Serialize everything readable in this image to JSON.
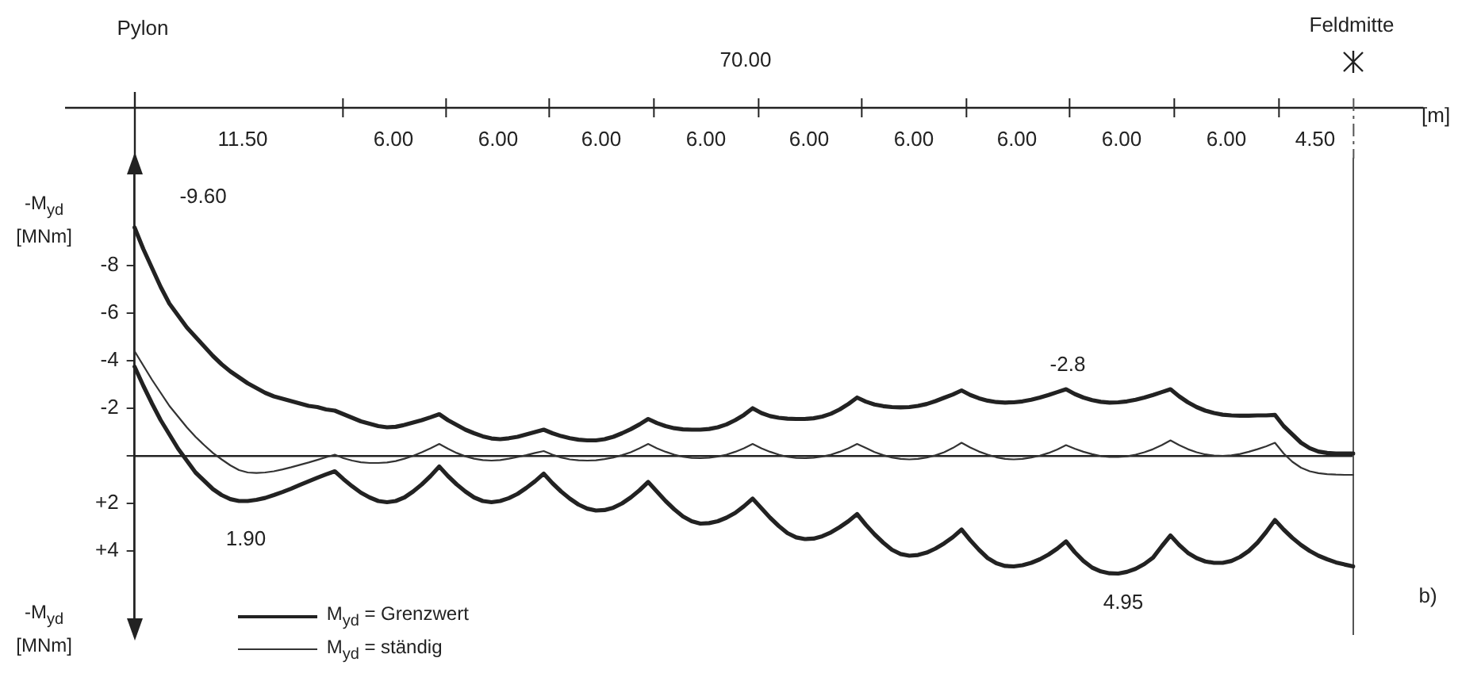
{
  "chart_data": {
    "type": "line",
    "ylabel": "-M$_{yd}$ [MNm]",
    "xlabel": "[m]",
    "tick_labels": "y",
    "ylim": [
      7.5,
      -12.5
    ],
    "yticks": [
      -8,
      -6,
      -4,
      -2,
      {
        "value": 0,
        "label": null
      },
      {
        "value": 2,
        "label": "+2"
      },
      {
        "value": 4,
        "label": "+4"
      }
    ],
    "legend": "bottom left",
    "marker": "none",
    "line_style": "solid",
    "categories": [
      null,
      null,
      null,
      null,
      null,
      null,
      null,
      null,
      null,
      null,
      null,
      null,
      null,
      null,
      null,
      null,
      null,
      null,
      null,
      null,
      null,
      null,
      null,
      null,
      null,
      null,
      null,
      null,
      null,
      null,
      null,
      null,
      null,
      null,
      null,
      null,
      null,
      null,
      null,
      null,
      null,
      null,
      null,
      null,
      null,
      null,
      null,
      null,
      null,
      null,
      null,
      null,
      null,
      null,
      null,
      null,
      null,
      null,
      null,
      null,
      null,
      null,
      null,
      null,
      null,
      null,
      null,
      null,
      null,
      null,
      null,
      null,
      null,
      null,
      null,
      null,
      null,
      null,
      null,
      null,
      null,
      null,
      null,
      null,
      null,
      null,
      null,
      null,
      null,
      null,
      null,
      null,
      null,
      null,
      null,
      null,
      null,
      null,
      null,
      null,
      null,
      null,
      null,
      null,
      null,
      null,
      null,
      null,
      null,
      null,
      null,
      null,
      null,
      null,
      null,
      null,
      null,
      null,
      null,
      null,
      null,
      null,
      null,
      null,
      null,
      null,
      null,
      null,
      null,
      null,
      null,
      null,
      null,
      null,
      null,
      null,
      null,
      null,
      null,
      null,
      null
    ],
    "series": [
      {
        "name": "M$_{yd}$ = Grenzwert",
        "color": "#222222",
        "values": [
          -9.6,
          -8.7,
          -7.9,
          -7.1,
          -6.4,
          -5.9,
          -5.4,
          -5.0,
          -4.6,
          -4.2,
          -3.85,
          -3.55,
          -3.3,
          -3.05,
          -2.85,
          -2.65,
          -2.5,
          -2.4,
          -2.3,
          -2.2,
          -2.1,
          -2.05,
          -1.95,
          -1.9,
          -1.75,
          -1.6,
          -1.45,
          -1.35,
          -1.25,
          -1.2,
          -1.22,
          -1.3,
          -1.4,
          -1.5,
          -1.62,
          -1.75,
          -1.5,
          -1.3,
          -1.1,
          -0.95,
          -0.82,
          -0.73,
          -0.7,
          -0.74,
          -0.8,
          -0.9,
          -1.0,
          -1.1,
          -0.95,
          -0.83,
          -0.74,
          -0.68,
          -0.65,
          -0.65,
          -0.7,
          -0.8,
          -0.95,
          -1.12,
          -1.32,
          -1.55,
          -1.38,
          -1.25,
          -1.16,
          -1.11,
          -1.1,
          -1.1,
          -1.13,
          -1.2,
          -1.32,
          -1.5,
          -1.72,
          -2.0,
          -1.8,
          -1.67,
          -1.6,
          -1.56,
          -1.55,
          -1.55,
          -1.58,
          -1.65,
          -1.77,
          -1.95,
          -2.18,
          -2.45,
          -2.28,
          -2.16,
          -2.09,
          -2.05,
          -2.04,
          -2.05,
          -2.1,
          -2.18,
          -2.3,
          -2.44,
          -2.58,
          -2.75,
          -2.56,
          -2.42,
          -2.32,
          -2.26,
          -2.24,
          -2.25,
          -2.29,
          -2.36,
          -2.45,
          -2.56,
          -2.68,
          -2.8,
          -2.6,
          -2.45,
          -2.34,
          -2.27,
          -2.24,
          -2.25,
          -2.29,
          -2.36,
          -2.45,
          -2.56,
          -2.68,
          -2.8,
          -2.5,
          -2.25,
          -2.05,
          -1.9,
          -1.8,
          -1.73,
          -1.7,
          -1.69,
          -1.69,
          -1.7,
          -1.7,
          -1.72,
          -1.25,
          -0.9,
          -0.55,
          -0.32,
          -0.18,
          -0.12,
          -0.1,
          -0.1,
          -0.1
        ]
      },
      {
        "color": "#222222",
        "values": [
          -3.75,
          -2.95,
          -2.2,
          -1.5,
          -0.9,
          -0.3,
          0.2,
          0.7,
          1.05,
          1.4,
          1.65,
          1.82,
          1.9,
          1.9,
          1.85,
          1.77,
          1.65,
          1.52,
          1.38,
          1.22,
          1.07,
          0.92,
          0.78,
          0.65,
          0.98,
          1.28,
          1.55,
          1.75,
          1.9,
          1.95,
          1.9,
          1.75,
          1.5,
          1.2,
          0.85,
          0.45,
          0.85,
          1.2,
          1.5,
          1.75,
          1.9,
          1.95,
          1.9,
          1.78,
          1.6,
          1.35,
          1.07,
          0.75,
          1.15,
          1.5,
          1.8,
          2.05,
          2.22,
          2.3,
          2.28,
          2.18,
          2.0,
          1.75,
          1.45,
          1.1,
          1.5,
          1.9,
          2.25,
          2.55,
          2.75,
          2.85,
          2.83,
          2.75,
          2.6,
          2.4,
          2.12,
          1.8,
          2.2,
          2.6,
          2.95,
          3.25,
          3.43,
          3.5,
          3.48,
          3.38,
          3.22,
          3.0,
          2.75,
          2.45,
          2.9,
          3.3,
          3.65,
          3.95,
          4.13,
          4.2,
          4.17,
          4.07,
          3.9,
          3.68,
          3.42,
          3.1,
          3.55,
          3.95,
          4.3,
          4.52,
          4.63,
          4.65,
          4.6,
          4.5,
          4.35,
          4.15,
          3.9,
          3.6,
          4.05,
          4.42,
          4.7,
          4.86,
          4.94,
          4.95,
          4.88,
          4.75,
          4.55,
          4.28,
          3.8,
          3.35,
          3.75,
          4.08,
          4.3,
          4.44,
          4.5,
          4.5,
          4.42,
          4.25,
          4.0,
          3.65,
          3.2,
          2.7,
          3.1,
          3.45,
          3.75,
          4.0,
          4.2,
          4.35,
          4.48,
          4.57,
          4.65
        ]
      },
      {
        "name": "M$_{yd}$ = ständig",
        "color": "#333333",
        "values": [
          -4.4,
          -3.8,
          -3.2,
          -2.65,
          -2.1,
          -1.65,
          -1.2,
          -0.8,
          -0.45,
          -0.12,
          0.15,
          0.4,
          0.6,
          0.7,
          0.72,
          0.7,
          0.65,
          0.57,
          0.48,
          0.38,
          0.28,
          0.17,
          0.06,
          -0.05,
          0.1,
          0.2,
          0.27,
          0.3,
          0.3,
          0.28,
          0.22,
          0.12,
          0,
          -0.15,
          -0.32,
          -0.5,
          -0.3,
          -0.12,
          0.02,
          0.12,
          0.18,
          0.2,
          0.18,
          0.12,
          0.05,
          -0.03,
          -0.12,
          -0.2,
          -0.05,
          0.07,
          0.15,
          0.19,
          0.2,
          0.19,
          0.14,
          0.07,
          -0.03,
          -0.15,
          -0.32,
          -0.5,
          -0.32,
          -0.17,
          -0.05,
          0.04,
          0.09,
          0.1,
          0.08,
          0.03,
          -0.05,
          -0.17,
          -0.32,
          -0.5,
          -0.32,
          -0.17,
          -0.05,
          0.04,
          0.09,
          0.1,
          0.08,
          0.03,
          -0.05,
          -0.17,
          -0.32,
          -0.5,
          -0.33,
          -0.16,
          -0.03,
          0.07,
          0.13,
          0.15,
          0.13,
          0.07,
          -0.02,
          -0.15,
          -0.33,
          -0.55,
          -0.35,
          -0.18,
          -0.05,
          0.06,
          0.13,
          0.15,
          0.13,
          0.07,
          -0.01,
          -0.12,
          -0.27,
          -0.45,
          -0.3,
          -0.17,
          -0.07,
          0.01,
          0.05,
          0.05,
          0.02,
          -0.05,
          -0.15,
          -0.28,
          -0.45,
          -0.65,
          -0.45,
          -0.28,
          -0.15,
          -0.06,
          -0.01,
          0,
          -0.02,
          -0.08,
          -0.17,
          -0.28,
          -0.4,
          -0.55,
          -0.1,
          0.25,
          0.5,
          0.65,
          0.73,
          0.77,
          0.79,
          0.8,
          0.8
        ]
      }
    ],
    "annotations": [
      "Pylon",
      "70.00",
      "Feldmitte",
      "11.50",
      "6.00",
      "6.00",
      "6.00",
      "6.00",
      "6.00",
      "6.00",
      "6.00",
      "6.00",
      "6.00",
      "4.50",
      "-9.60",
      "1.90",
      "-2.8",
      "4.95",
      "b)"
    ]
  }
}
